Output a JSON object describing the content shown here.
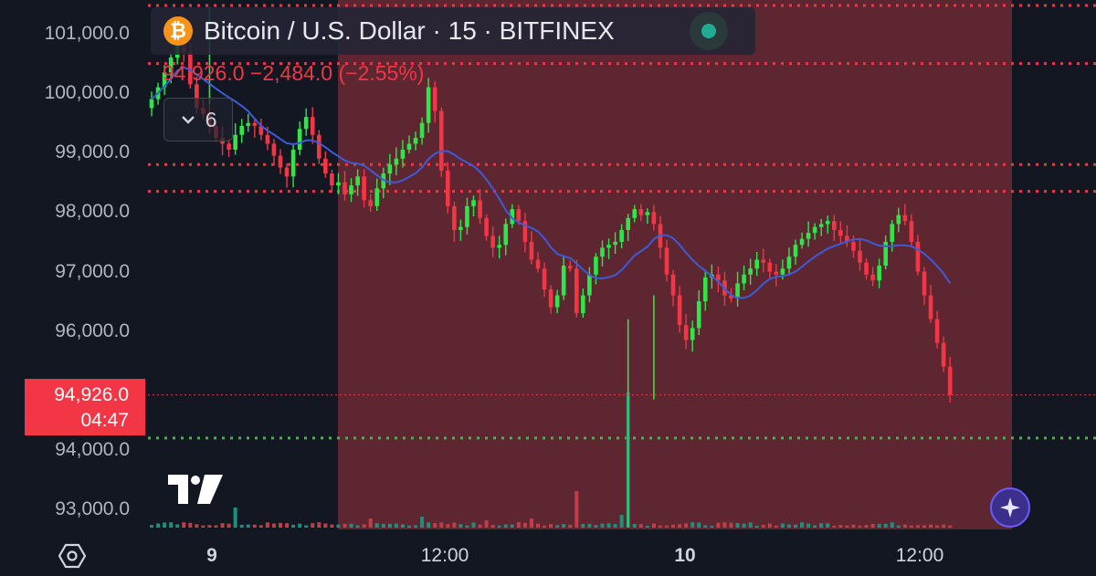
{
  "legend": {
    "symbol_icon": "bitcoin-icon",
    "symbol_glyph": "₿",
    "title": "Bitcoin / U.S. Dollar · 15 · BITFINEX",
    "change": "94,926.0 −2,484.0 (−2.55%)",
    "indicators_count": "6",
    "indicators_icon": "chevron-down-icon",
    "status_icon": "market-status-dot"
  },
  "price_tag": {
    "price": "94,926.0",
    "countdown": "04:47"
  },
  "colors": {
    "background": "#131722",
    "up": "#22ab94",
    "up_candle": "#2ee64a",
    "down": "#f23645",
    "moving_average": "#3d5bd9",
    "session_highlight": "#7a2d38",
    "support_line": "#4caf50"
  },
  "icons": {
    "settings": "hexagon-settings-icon",
    "ai_assistant": "sparkle-icon",
    "logo": "tradingview-logo"
  },
  "chart_data": {
    "type": "candlestick",
    "symbol": "BTCUSD",
    "interval": "15",
    "exchange": "BITFINEX",
    "y_ticks": [
      "101,000.0",
      "100,000.0",
      "99,000.0",
      "98,000.0",
      "97,000.0",
      "96,000.0",
      "94,000.0",
      "93,000.0"
    ],
    "y_range": [
      92700,
      101500
    ],
    "x_ticks": [
      {
        "label": "9",
        "bold": true,
        "t": 5
      },
      {
        "label": "12:00",
        "bold": false,
        "t": 53
      },
      {
        "label": "10",
        "bold": true,
        "t": 101
      },
      {
        "label": "12:00",
        "bold": false,
        "t": 149
      }
    ],
    "current_price": 94926.0,
    "dotted_levels": [
      {
        "price": 101450,
        "color": "#f23645"
      },
      {
        "price": 100500,
        "color": "#f23645"
      },
      {
        "price": 98800,
        "color": "#f23645"
      },
      {
        "price": 98350,
        "color": "#f23645"
      },
      {
        "price": 94200,
        "color": "#4caf50"
      }
    ],
    "highlight_range": {
      "from_t": 19,
      "to_t": 174
    },
    "closes": [
      99900,
      100100,
      100350,
      100600,
      100950,
      100700,
      100150,
      99750,
      99650,
      99450,
      99250,
      99150,
      99050,
      99300,
      99450,
      99500,
      99450,
      99300,
      99150,
      98950,
      98750,
      98600,
      99050,
      99400,
      99600,
      99300,
      98900,
      98650,
      98450,
      98500,
      98300,
      98450,
      98600,
      98200,
      98100,
      98400,
      98650,
      98800,
      98900,
      99050,
      99150,
      99250,
      99500,
      100100,
      99700,
      98700,
      98100,
      97700,
      97750,
      98100,
      98200,
      97900,
      97600,
      97400,
      97450,
      97800,
      98050,
      97850,
      97500,
      97200,
      97050,
      96700,
      96400,
      96600,
      97100,
      97050,
      96300,
      96600,
      96950,
      97250,
      97400,
      97450,
      97500,
      97700,
      97900,
      98050,
      97950,
      98000,
      97800,
      97400,
      96950,
      96600,
      96100,
      95850,
      96050,
      96500,
      96900,
      96950,
      96850,
      96600,
      96550,
      96800,
      96950,
      97050,
      97200,
      97150,
      97000,
      96950,
      97050,
      97250,
      97450,
      97550,
      97650,
      97750,
      97800,
      97850,
      97700,
      97600,
      97500,
      97350,
      97150,
      96950,
      96850,
      97100,
      97500,
      97800,
      97950,
      97850,
      97500,
      97000,
      96600,
      96200,
      95800,
      95400,
      94926
    ],
    "volume_spikes": [
      {
        "t": 13,
        "v": 0.55
      },
      {
        "t": 34,
        "v": 0.25
      },
      {
        "t": 66,
        "v": 1.0
      },
      {
        "t": 73,
        "v": 0.35
      },
      {
        "t": 42,
        "v": 0.3
      },
      {
        "t": 59,
        "v": 0.25
      },
      {
        "t": 52,
        "v": 0.2
      }
    ]
  }
}
